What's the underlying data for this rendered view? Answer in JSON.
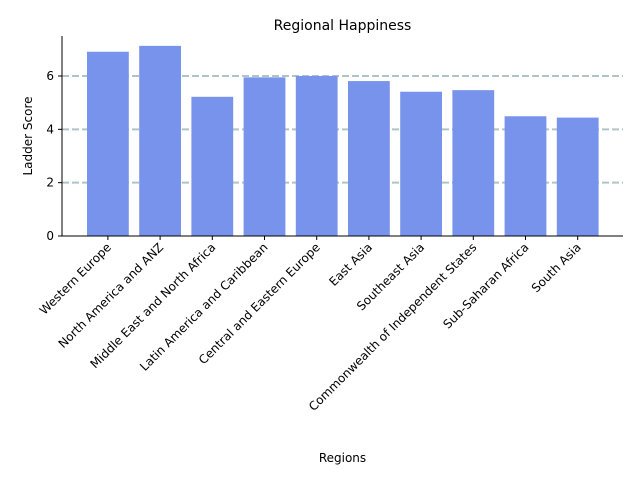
{
  "chart_data": {
    "type": "bar",
    "title": "Regional Happiness",
    "xlabel": "Regions",
    "ylabel": "Ladder Score",
    "categories": [
      "Western Europe",
      "North America and ANZ",
      "Middle East and North Africa",
      "Latin America and Caribbean",
      "Central and Eastern Europe",
      "East Asia",
      "Southeast Asia",
      "Commonwealth of Independent States",
      "Sub-Saharan Africa",
      "South Asia"
    ],
    "values": [
      6.91,
      7.13,
      5.22,
      5.95,
      6.0,
      5.81,
      5.41,
      5.47,
      4.49,
      4.44
    ],
    "ylim": [
      0,
      7.5
    ],
    "yticks": [
      0,
      2,
      4,
      6
    ],
    "grid": "y",
    "colors": {
      "bar": "#7893eb",
      "grid": "#b0c4c8",
      "axis": "#000000"
    }
  }
}
